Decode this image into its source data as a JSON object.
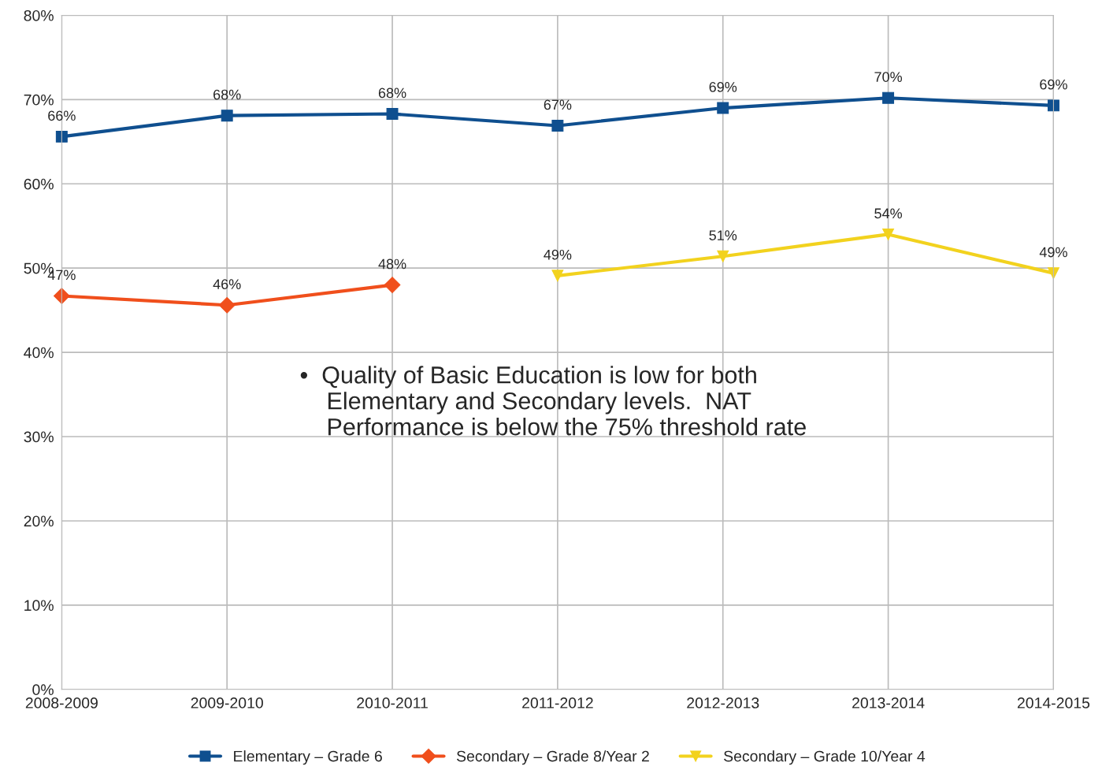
{
  "chart_data": {
    "type": "line",
    "categories": [
      "2008-2009",
      "2009-2010",
      "2010-2011",
      "2011-2012",
      "2012-2013",
      "2013-2014",
      "2014-2015"
    ],
    "series": [
      {
        "name": "Elementary – Grade 6",
        "color": "#0f4f8f",
        "marker": "square",
        "values": [
          65.6,
          68.1,
          68.3,
          66.9,
          69.0,
          70.2,
          69.3
        ],
        "value_labels": [
          "66%",
          "68%",
          "68%",
          "67%",
          "69%",
          "70%",
          "69%"
        ]
      },
      {
        "name": "Secondary – Grade 8/Year 2",
        "color": "#f04f1c",
        "marker": "diamond",
        "values": [
          46.7,
          45.6,
          48.0,
          null,
          null,
          null,
          null
        ],
        "value_labels": [
          "47%",
          "46%",
          "48%",
          null,
          null,
          null,
          null
        ]
      },
      {
        "name": "Secondary – Grade 10/Year 4",
        "color": "#f2d21e",
        "marker": "triangle",
        "values": [
          null,
          null,
          null,
          49.1,
          51.4,
          54.0,
          49.4
        ],
        "value_labels": [
          null,
          null,
          null,
          "49%",
          "51%",
          "54%",
          "49%"
        ]
      }
    ],
    "ylim": [
      0,
      80
    ],
    "yticks": [
      {
        "value": 0,
        "label": "0%"
      },
      {
        "value": 10,
        "label": "10%"
      },
      {
        "value": 20,
        "label": "20%"
      },
      {
        "value": 30,
        "label": "30%"
      },
      {
        "value": 40,
        "label": "40%"
      },
      {
        "value": 50,
        "label": "50%"
      },
      {
        "value": 60,
        "label": "60%"
      },
      {
        "value": 70,
        "label": "70%"
      },
      {
        "value": 80,
        "label": "80%"
      }
    ],
    "grid": true,
    "legend": "bottom",
    "line_style": "solid",
    "annotations": [
      "•  Quality of Basic Education is low for both\n    Elementary and Secondary levels.  NAT\n    Performance is below the 75% threshold rate"
    ]
  }
}
